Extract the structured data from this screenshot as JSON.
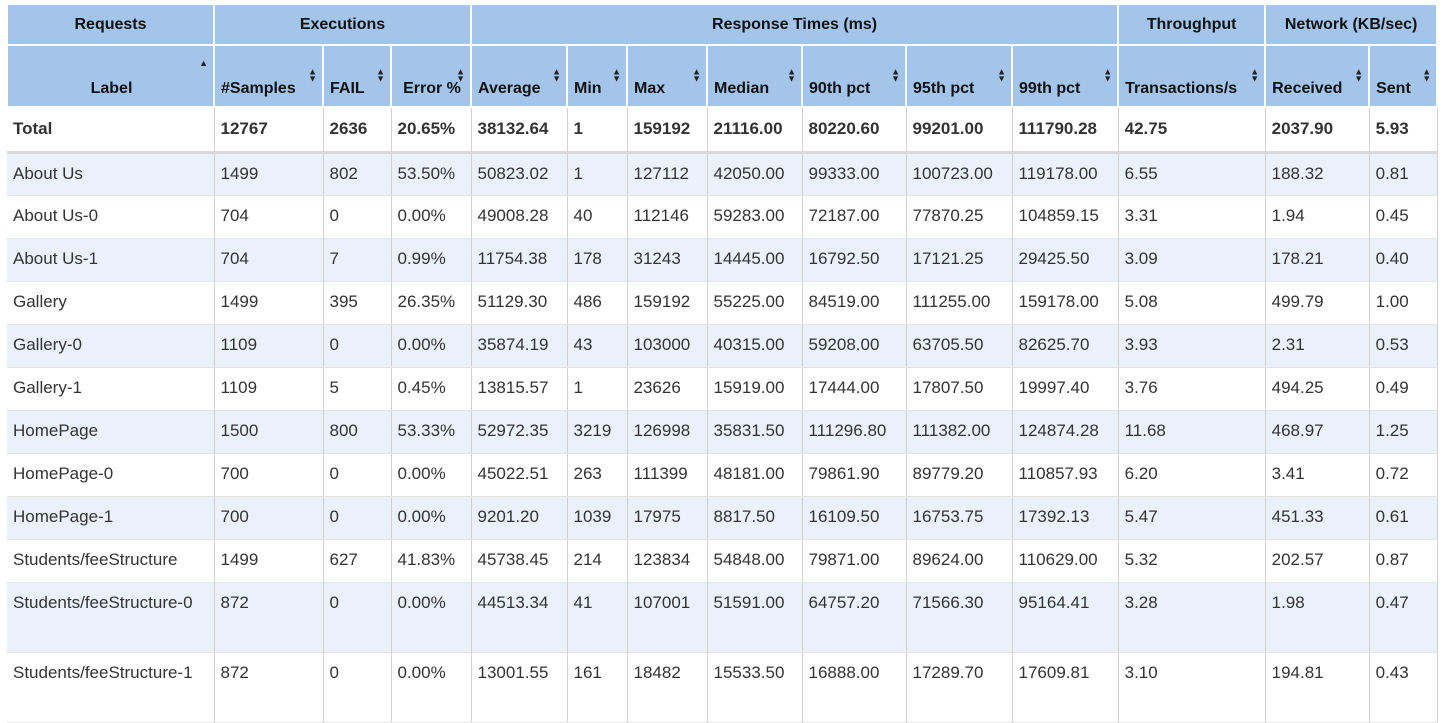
{
  "header": {
    "groups": [
      {
        "label": "Requests",
        "span": 1
      },
      {
        "label": "Executions",
        "span": 3
      },
      {
        "label": "Response Times (ms)",
        "span": 7
      },
      {
        "label": "Throughput",
        "span": 1
      },
      {
        "label": "Network (KB/sec)",
        "span": 2
      }
    ],
    "columns": [
      "Label",
      "#Samples",
      "FAIL",
      "Error %",
      "Average",
      "Min",
      "Max",
      "Median",
      "90th pct",
      "95th pct",
      "99th pct",
      "Transactions/s",
      "Received",
      "Sent"
    ],
    "sorted_column": "Label"
  },
  "total": [
    "Total",
    "12767",
    "2636",
    "20.65%",
    "38132.64",
    "1",
    "159192",
    "21116.00",
    "80220.60",
    "99201.00",
    "111790.28",
    "42.75",
    "2037.90",
    "5.93"
  ],
  "rows": [
    [
      "About Us",
      "1499",
      "802",
      "53.50%",
      "50823.02",
      "1",
      "127112",
      "42050.00",
      "99333.00",
      "100723.00",
      "119178.00",
      "6.55",
      "188.32",
      "0.81"
    ],
    [
      "About Us-0",
      "704",
      "0",
      "0.00%",
      "49008.28",
      "40",
      "112146",
      "59283.00",
      "72187.00",
      "77870.25",
      "104859.15",
      "3.31",
      "1.94",
      "0.45"
    ],
    [
      "About Us-1",
      "704",
      "7",
      "0.99%",
      "11754.38",
      "178",
      "31243",
      "14445.00",
      "16792.50",
      "17121.25",
      "29425.50",
      "3.09",
      "178.21",
      "0.40"
    ],
    [
      "Gallery",
      "1499",
      "395",
      "26.35%",
      "51129.30",
      "486",
      "159192",
      "55225.00",
      "84519.00",
      "111255.00",
      "159178.00",
      "5.08",
      "499.79",
      "1.00"
    ],
    [
      "Gallery-0",
      "1109",
      "0",
      "0.00%",
      "35874.19",
      "43",
      "103000",
      "40315.00",
      "59208.00",
      "63705.50",
      "82625.70",
      "3.93",
      "2.31",
      "0.53"
    ],
    [
      "Gallery-1",
      "1109",
      "5",
      "0.45%",
      "13815.57",
      "1",
      "23626",
      "15919.00",
      "17444.00",
      "17807.50",
      "19997.40",
      "3.76",
      "494.25",
      "0.49"
    ],
    [
      "HomePage",
      "1500",
      "800",
      "53.33%",
      "52972.35",
      "3219",
      "126998",
      "35831.50",
      "111296.80",
      "111382.00",
      "124874.28",
      "11.68",
      "468.97",
      "1.25"
    ],
    [
      "HomePage-0",
      "700",
      "0",
      "0.00%",
      "45022.51",
      "263",
      "111399",
      "48181.00",
      "79861.90",
      "89779.20",
      "110857.93",
      "6.20",
      "3.41",
      "0.72"
    ],
    [
      "HomePage-1",
      "700",
      "0",
      "0.00%",
      "9201.20",
      "1039",
      "17975",
      "8817.50",
      "16109.50",
      "16753.75",
      "17392.13",
      "5.47",
      "451.33",
      "0.61"
    ],
    [
      "Students/feeStructure",
      "1499",
      "627",
      "41.83%",
      "45738.45",
      "214",
      "123834",
      "54848.00",
      "79871.00",
      "89624.00",
      "110629.00",
      "5.32",
      "202.57",
      "0.87"
    ],
    [
      "Students/feeStructure-0",
      "872",
      "0",
      "0.00%",
      "44513.34",
      "41",
      "107001",
      "51591.00",
      "64757.20",
      "71566.30",
      "95164.41",
      "3.28",
      "1.98",
      "0.47"
    ],
    [
      "Students/feeStructure-1",
      "872",
      "0",
      "0.00%",
      "13001.55",
      "161",
      "18482",
      "15533.50",
      "16888.00",
      "17289.70",
      "17609.81",
      "3.10",
      "194.81",
      "0.43"
    ]
  ],
  "colors": {
    "header_bg": "#a3c5eb",
    "odd_row_bg": "#eaf1fb",
    "even_row_bg": "#ffffff"
  }
}
